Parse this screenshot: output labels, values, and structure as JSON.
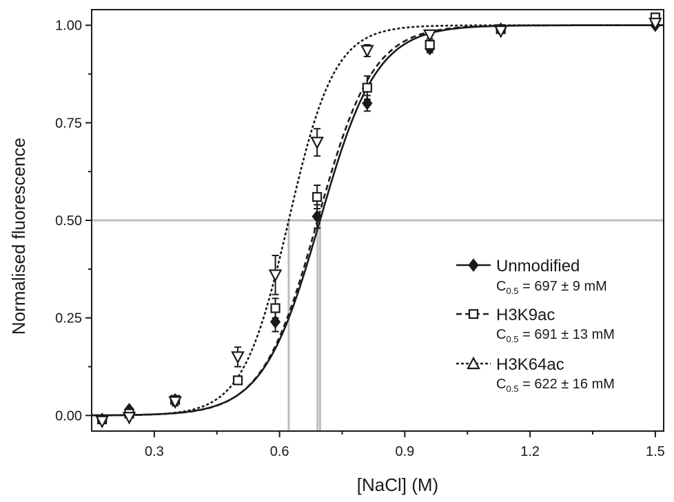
{
  "chart_data": {
    "type": "scatter",
    "title": "",
    "xlabel": "[NaCl] (M)",
    "ylabel": "Normalised fluorescence",
    "xlim": [
      0.15,
      1.52
    ],
    "ylim": [
      -0.04,
      1.04
    ],
    "x_ticks": [
      0.3,
      0.6,
      0.9,
      1.2,
      1.5
    ],
    "x_tick_labels": [
      "0.3",
      "0.6",
      "0.9",
      "1.2",
      "1.5"
    ],
    "x_minor_ticks": [
      0.45,
      0.75,
      1.05,
      1.35
    ],
    "y_ticks": [
      0.0,
      0.25,
      0.5,
      0.75,
      1.0
    ],
    "y_tick_labels": [
      "0.00",
      "0.25",
      "0.50",
      "0.75",
      "1.00"
    ],
    "y_minor_ticks": [
      0.125,
      0.375,
      0.625,
      0.875
    ],
    "grid": false,
    "legend_position": "bottom-right",
    "reference_lines": {
      "horizontal_y": 0.5,
      "vertical_x": [
        0.622,
        0.691,
        0.697
      ],
      "color": "#bdbdbd"
    },
    "series": [
      {
        "name": "Unmodified",
        "marker": "filled-diamond",
        "line_style": "solid",
        "midpoint": 0.697,
        "slope": 0.068,
        "fit_label": "C",
        "fit_sub": "0.5",
        "fit_value": " = 697 ± 9 mM",
        "x": [
          0.175,
          0.24,
          0.35,
          0.59,
          0.69,
          0.81,
          0.96,
          1.13,
          1.5
        ],
        "y": [
          -0.01,
          0.015,
          0.04,
          0.24,
          0.51,
          0.8,
          0.94,
          0.99,
          1.0
        ],
        "err": [
          0.005,
          0.005,
          0.005,
          0.025,
          0.03,
          0.02,
          0.01,
          0.005,
          0.005
        ]
      },
      {
        "name": "H3K9ac",
        "marker": "open-square",
        "line_style": "dashed",
        "midpoint": 0.691,
        "slope": 0.066,
        "fit_label": "C",
        "fit_sub": "0.5",
        "fit_value": " = 691 ± 13 mM",
        "x": [
          0.175,
          0.24,
          0.35,
          0.5,
          0.59,
          0.69,
          0.81,
          0.96,
          1.13,
          1.5
        ],
        "y": [
          -0.01,
          0.005,
          0.04,
          0.09,
          0.275,
          0.56,
          0.84,
          0.95,
          0.99,
          1.02
        ],
        "err": [
          0.005,
          0.005,
          0.01,
          0.01,
          0.025,
          0.03,
          0.03,
          0.01,
          0.005,
          0.01
        ]
      },
      {
        "name": "H3K64ac",
        "marker": "open-triangle",
        "line_style": "dash-dot",
        "midpoint": 0.622,
        "slope": 0.055,
        "fit_label": "C",
        "fit_sub": "0.5",
        "fit_value": " = 622 ± 16 mM",
        "x": [
          0.175,
          0.24,
          0.35,
          0.5,
          0.59,
          0.69,
          0.81,
          0.96,
          1.13,
          1.5
        ],
        "y": [
          -0.015,
          -0.005,
          0.035,
          0.15,
          0.36,
          0.7,
          0.935,
          0.975,
          0.985,
          1.005
        ],
        "err": [
          0.005,
          0.005,
          0.01,
          0.025,
          0.05,
          0.035,
          0.015,
          0.01,
          0.005,
          0.005
        ]
      }
    ]
  }
}
